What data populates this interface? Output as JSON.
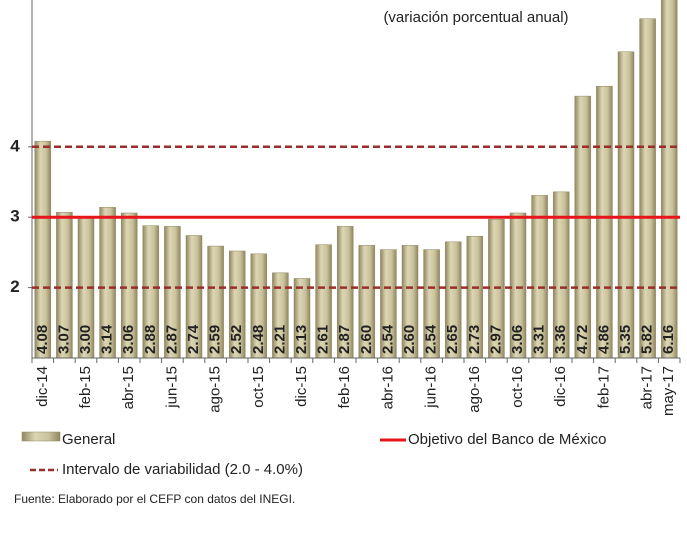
{
  "chart_data": {
    "type": "bar",
    "subtitle": "(variación porcentual anual)",
    "categories": [
      "dic-14",
      null,
      "feb-15",
      null,
      "abr-15",
      null,
      "jun-15",
      null,
      "ago-15",
      null,
      "oct-15",
      null,
      "dic-15",
      null,
      "feb-16",
      null,
      "abr-16",
      null,
      "jun-16",
      null,
      "ago-16",
      null,
      "oct-16",
      null,
      "dic-16",
      null,
      "feb-17",
      null,
      "abr-17",
      "may-17"
    ],
    "series": [
      {
        "name": "General",
        "color": "#c9c29c",
        "values": [
          4.08,
          3.07,
          3.0,
          3.14,
          3.06,
          2.88,
          2.87,
          2.74,
          2.59,
          2.52,
          2.48,
          2.21,
          2.13,
          2.61,
          2.87,
          2.6,
          2.54,
          2.6,
          2.54,
          2.65,
          2.73,
          2.97,
          3.06,
          3.31,
          3.36,
          4.72,
          4.86,
          5.35,
          5.82,
          6.16
        ],
        "value_labels": [
          "4.08",
          "3.07",
          "3.00",
          "3.14",
          "3.06",
          "2.88",
          "2.87",
          "2.74",
          "2.59",
          "2.52",
          "2.48",
          "2.21",
          "2.13",
          "2.61",
          "2.87",
          "2.60",
          "2.54",
          "2.60",
          "2.54",
          "2.65",
          "2.73",
          "2.97",
          "3.06",
          "3.31",
          "3.36",
          "4.72",
          "4.86",
          "5.35",
          "5.82",
          "6.16"
        ]
      }
    ],
    "target": 3,
    "target_name": "Objetivo del Banco de México",
    "target_color": "#e8141b",
    "band": [
      2,
      4
    ],
    "band_name": "Intervalo de variabilidad (2.0 - 4.0%)",
    "band_color": "#9b2d2a",
    "ylim": [
      1,
      6
    ],
    "yticks": [
      2,
      3,
      4
    ],
    "source": "Fuente: Elaborado por el CEFP con datos del INEGI."
  }
}
